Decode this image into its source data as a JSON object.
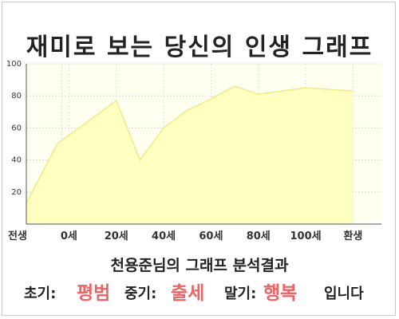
{
  "title": "재미로 보는 당신의 인생 그래프",
  "subtitle": "천용준님의 그래프 분석결과",
  "stages": {
    "early_label": "초기:",
    "early_value": "평범",
    "middle_label": "중기:",
    "middle_value": "출세",
    "late_label": "말기:",
    "late_value": "행복",
    "ending": "입니다"
  },
  "colors": {
    "area_fill": "#ffffc0",
    "area_line": "#f0ea8a",
    "plot_bg": "#fffff0",
    "highlight": "#ec6466"
  },
  "chart_data": {
    "type": "area",
    "title": "재미로 보는 당신의 인생 그래프",
    "xlabel": "",
    "ylabel": "",
    "x_ticks": [
      {
        "pos": -3,
        "label": "전생"
      },
      {
        "pos": 0,
        "label": "0세"
      },
      {
        "pos": 20,
        "label": "20세"
      },
      {
        "pos": 40,
        "label": "40세"
      },
      {
        "pos": 60,
        "label": "60세"
      },
      {
        "pos": 80,
        "label": "80세"
      },
      {
        "pos": 100,
        "label": "100세"
      },
      {
        "pos": 120,
        "label": "환생"
      }
    ],
    "y_ticks": [
      20,
      40,
      60,
      80,
      100
    ],
    "xlim": [
      -18,
      132
    ],
    "ylim": [
      0,
      100
    ],
    "grid": true,
    "x": [
      -18,
      -5,
      20,
      30,
      40,
      50,
      60,
      70,
      80,
      90,
      100,
      110,
      120
    ],
    "values": [
      13,
      50,
      77,
      40,
      60,
      71,
      78,
      86,
      81,
      83,
      85,
      84,
      83
    ]
  }
}
